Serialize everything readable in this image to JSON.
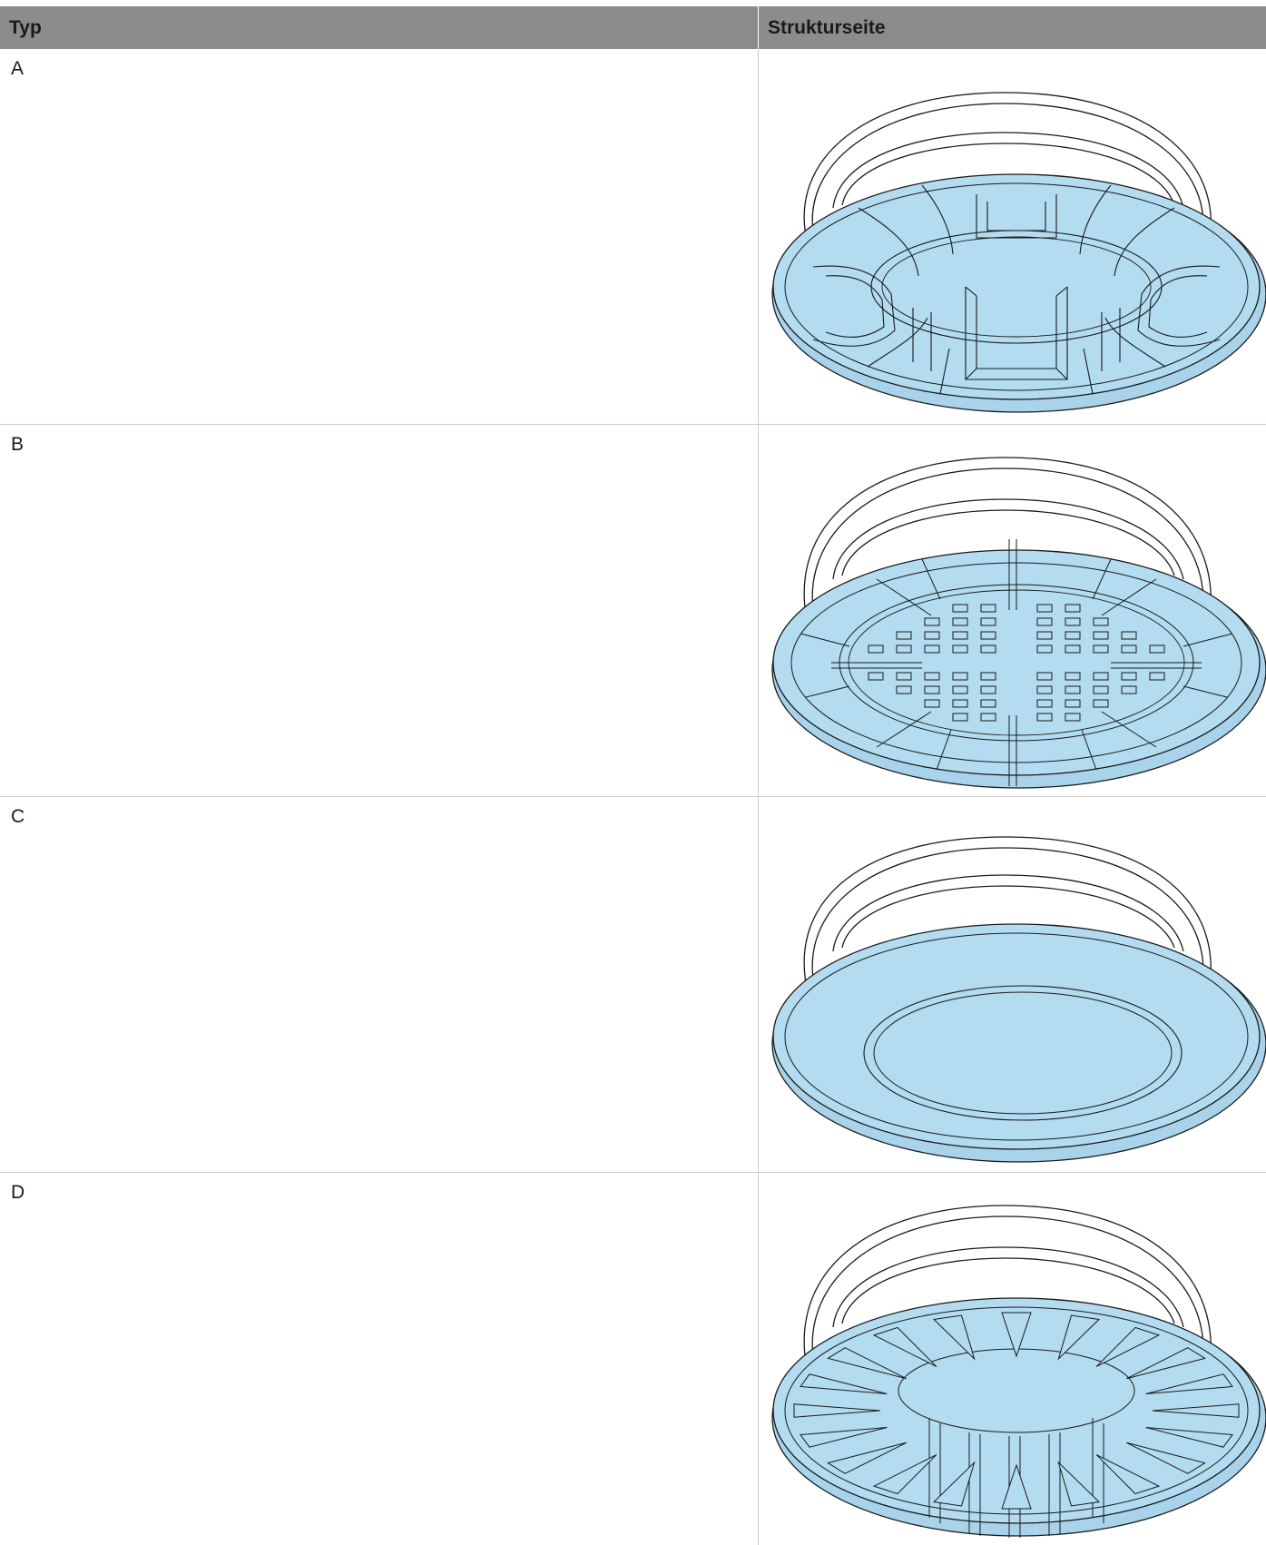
{
  "table": {
    "headers": {
      "typ": "Typ",
      "strukturseite": "Strukturseite"
    },
    "rows": [
      {
        "type": "A",
        "image": "pedestal-head-rib-pattern-icon"
      },
      {
        "type": "B",
        "image": "pedestal-head-grid-pattern-icon"
      },
      {
        "type": "C",
        "image": "pedestal-head-smooth-icon"
      },
      {
        "type": "D",
        "image": "pedestal-head-radial-cone-icon"
      }
    ]
  },
  "colors": {
    "header_bg": "#8c8c8c",
    "fill_blue": "#b3dcf0",
    "line": "#1a1a1a",
    "grid": "#cccccc"
  }
}
